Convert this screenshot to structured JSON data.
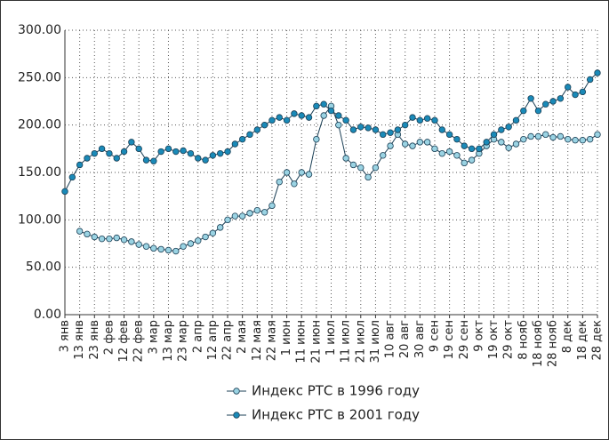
{
  "chart_data": {
    "type": "line",
    "categories": [
      "3 янв",
      null,
      "13 янв",
      null,
      "23 янв",
      null,
      "2 фев",
      null,
      "12 фев",
      null,
      "22 фев",
      null,
      "3 мар",
      null,
      "13 мар",
      null,
      "23 мар",
      null,
      "2 апр",
      null,
      "12 апр",
      null,
      "22 апр",
      null,
      "2 мая",
      null,
      "12 мая",
      null,
      "22 мая",
      null,
      "1 июн",
      null,
      "11 июн",
      null,
      "21 июн",
      null,
      "1 июл",
      null,
      "11 июл",
      null,
      "21 июл",
      null,
      "31 июл",
      null,
      "10 авг",
      null,
      "20 авг",
      null,
      "30 авг",
      null,
      "9 сен",
      null,
      "19 сен",
      null,
      "29 сен",
      null,
      "9 окт",
      null,
      "19 окт",
      null,
      "29 окт",
      null,
      "8 нояб",
      null,
      "18 нояб",
      null,
      "28 нояб",
      null,
      "8 дек",
      null,
      "18 дек",
      null,
      "28 дек"
    ],
    "series": [
      {
        "name": "Индекс РТС в 1996 году",
        "color": "#9ad3e3",
        "values": [
          null,
          null,
          88,
          85,
          82,
          80,
          80,
          81,
          79,
          77,
          74,
          72,
          70,
          69,
          68,
          67,
          72,
          75,
          78,
          82,
          86,
          92,
          100,
          104,
          104,
          107,
          110,
          108,
          115,
          140,
          150,
          138,
          150,
          148,
          185,
          210,
          220,
          200,
          165,
          158,
          155,
          145,
          155,
          168,
          178,
          190,
          180,
          178,
          182,
          182,
          175,
          170,
          172,
          168,
          160,
          163,
          170,
          178,
          185,
          182,
          176,
          180,
          185,
          188,
          188,
          190,
          187,
          188,
          185,
          184,
          184,
          185,
          190
        ]
      },
      {
        "name": "Индекс РТС в 2001 году",
        "color": "#1a8ab8",
        "values": [
          130,
          145,
          158,
          165,
          170,
          175,
          170,
          165,
          172,
          182,
          175,
          163,
          162,
          172,
          175,
          172,
          173,
          170,
          165,
          163,
          168,
          170,
          172,
          180,
          185,
          190,
          195,
          200,
          205,
          208,
          205,
          212,
          210,
          208,
          220,
          222,
          215,
          210,
          205,
          195,
          198,
          197,
          195,
          190,
          192,
          195,
          200,
          208,
          205,
          207,
          205,
          195,
          190,
          185,
          178,
          175,
          175,
          182,
          190,
          195,
          198,
          205,
          215,
          228,
          215,
          222,
          225,
          228,
          240,
          232,
          235,
          248,
          255
        ]
      }
    ],
    "ylim": [
      0,
      300
    ],
    "yticks": [
      {
        "value": 0,
        "label": "0.00"
      },
      {
        "value": 50,
        "label": "50.00"
      },
      {
        "value": 100,
        "label": "100.00"
      },
      {
        "value": 150,
        "label": "150.00"
      },
      {
        "value": 200,
        "label": "200.00"
      },
      {
        "value": 250,
        "label": "250.00"
      },
      {
        "value": 300,
        "label": "300.00"
      }
    ],
    "grid": true
  }
}
